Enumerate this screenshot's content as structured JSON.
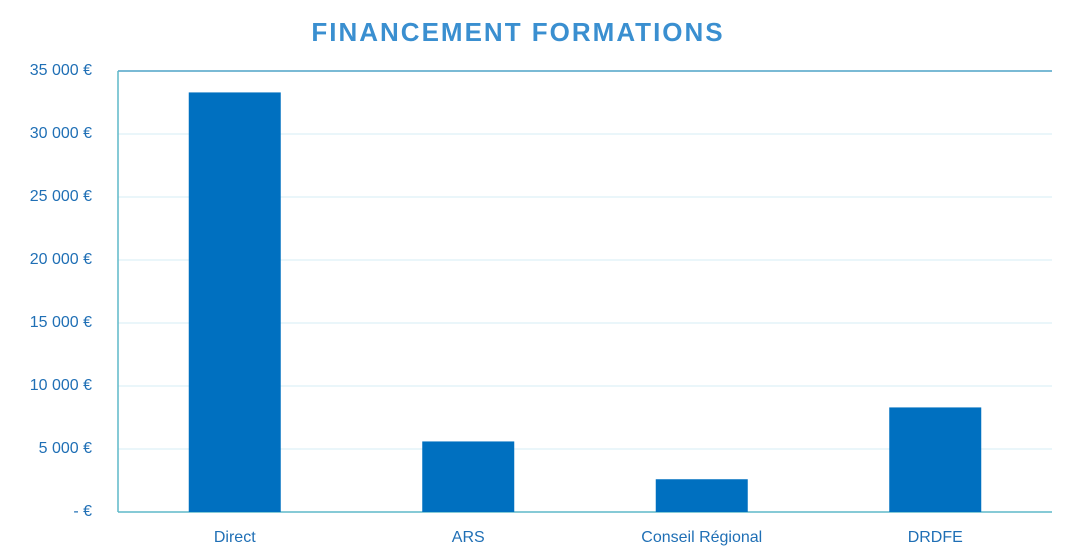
{
  "chart_data": {
    "type": "bar",
    "title": "FINANCEMENT FORMATIONS",
    "categories": [
      "Direct",
      "ARS",
      "Conseil Régional",
      "DRDFE"
    ],
    "values": [
      33300,
      5600,
      2600,
      8300
    ],
    "color": "#0070c0",
    "ylim": [
      0,
      35000
    ],
    "yticks": [
      {
        "value": 0,
        "label": "- €"
      },
      {
        "value": 5000,
        "label": "5 000 €"
      },
      {
        "value": 10000,
        "label": "10 000 €"
      },
      {
        "value": 15000,
        "label": "15 000 €"
      },
      {
        "value": 20000,
        "label": "20 000 €"
      },
      {
        "value": 25000,
        "label": "25 000 €"
      },
      {
        "value": 30000,
        "label": "30 000 €"
      },
      {
        "value": 35000,
        "label": "35 000 €"
      }
    ],
    "grid": true
  }
}
